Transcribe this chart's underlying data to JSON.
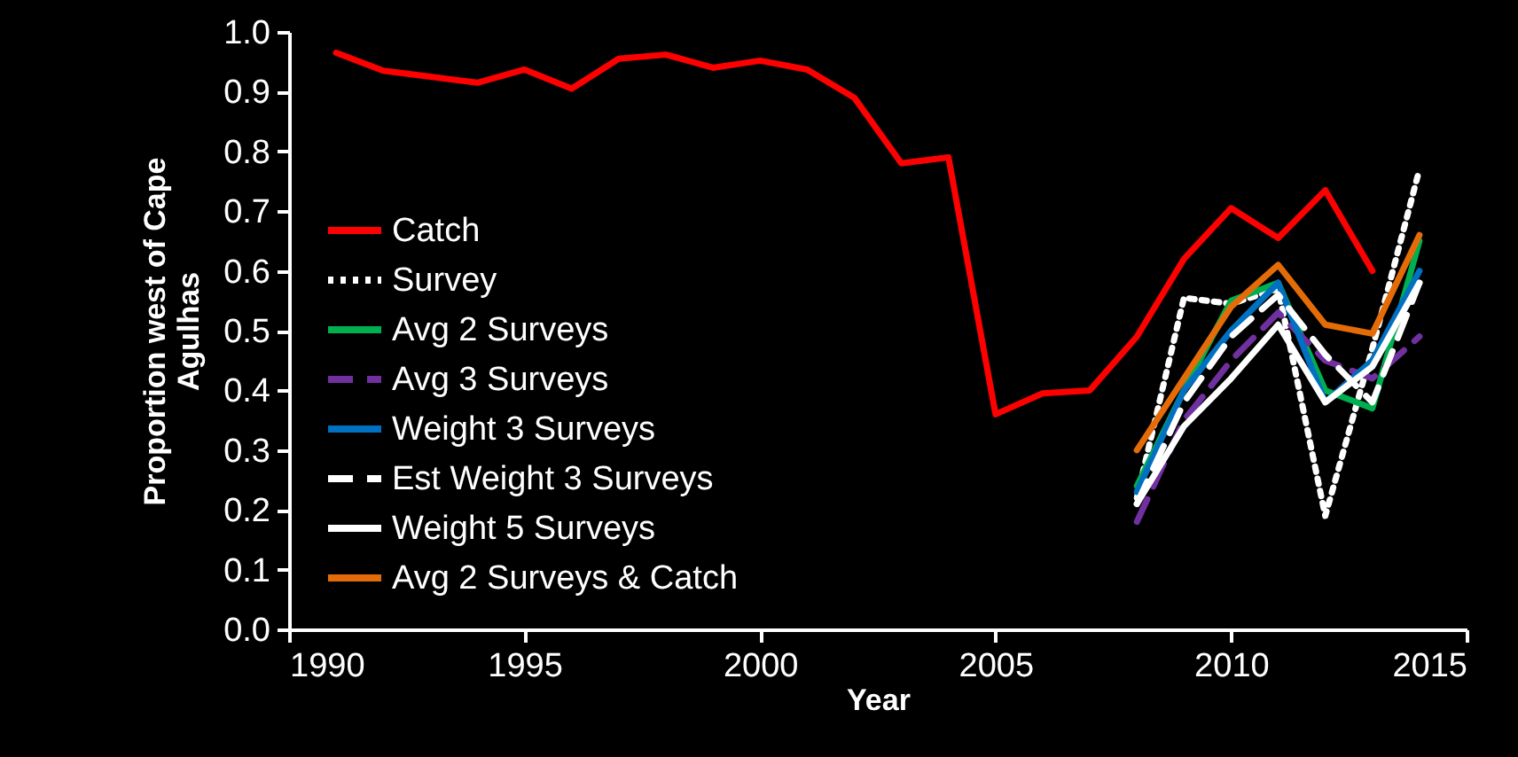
{
  "chart_data": {
    "type": "line",
    "xlabel": "Year",
    "ylabel": "Proportion west of Cape Agulhas",
    "xlim": [
      1990,
      2015
    ],
    "xticks": [
      1990,
      1995,
      2000,
      2005,
      2010,
      2015
    ],
    "ylim": [
      0,
      1
    ],
    "yticks": [
      {
        "value": 0,
        "label": "0.0"
      },
      {
        "value": 0.1,
        "label": "0.1"
      },
      {
        "value": 0.2,
        "label": "0.2"
      },
      {
        "value": 0.3,
        "label": "0.3"
      },
      {
        "value": 0.4,
        "label": "0.4"
      },
      {
        "value": 0.5,
        "label": "0.5"
      },
      {
        "value": 0.6,
        "label": "0.6"
      },
      {
        "value": 0.7,
        "label": "0.7"
      },
      {
        "value": 0.8,
        "label": "0.8"
      },
      {
        "value": 0.9,
        "label": "0.9"
      },
      {
        "value": 1,
        "label": "1.0"
      }
    ],
    "grid": false,
    "legend": "left",
    "marker": "none",
    "series": [
      {
        "name": "Catch",
        "color": "#ff0000",
        "line_style": "solid",
        "x": [
          1991,
          1992,
          1993,
          1994,
          1995,
          1996,
          1997,
          1998,
          1999,
          2000,
          2001,
          2002,
          2003,
          2004,
          2005,
          2006,
          2007,
          2008,
          2009,
          2010,
          2011,
          2012,
          2013
        ],
        "values": [
          0.965,
          0.935,
          0.925,
          0.915,
          0.937,
          0.905,
          0.955,
          0.962,
          0.94,
          0.952,
          0.937,
          0.89,
          0.78,
          0.79,
          0.36,
          0.395,
          0.4,
          0.49,
          0.62,
          0.705,
          0.655,
          0.735,
          0.6
        ]
      },
      {
        "name": "Survey",
        "color": "#ffffff",
        "line_style": "dotted",
        "x": [
          2008,
          2009,
          2010,
          2011,
          2012,
          2013,
          2014
        ],
        "values": [
          0.22,
          0.555,
          0.545,
          0.57,
          0.19,
          0.47,
          0.77
        ]
      },
      {
        "name": "Avg 2 Surveys",
        "color": "#00b050",
        "line_style": "solid",
        "x": [
          2008,
          2009,
          2010,
          2011,
          2012,
          2013,
          2014
        ],
        "values": [
          0.24,
          0.4,
          0.55,
          0.58,
          0.4,
          0.37,
          0.65
        ]
      },
      {
        "name": "Avg 3 Surveys",
        "color": "#7030a0",
        "line_style": "dashed",
        "x": [
          2008,
          2009,
          2010,
          2011,
          2012,
          2013,
          2014
        ],
        "values": [
          0.18,
          0.35,
          0.45,
          0.53,
          0.45,
          0.42,
          0.49
        ]
      },
      {
        "name": "Weight 3 Surveys",
        "color": "#0070c0",
        "line_style": "solid",
        "x": [
          2008,
          2009,
          2010,
          2011,
          2012,
          2013,
          2014
        ],
        "values": [
          0.23,
          0.4,
          0.5,
          0.58,
          0.38,
          0.45,
          0.6
        ]
      },
      {
        "name": "Est Weight 3 Surveys",
        "color": "#ffffff",
        "line_style": "dashed",
        "x": [
          2008,
          2009,
          2010,
          2011,
          2012,
          2013,
          2014
        ],
        "values": [
          0.21,
          0.38,
          0.49,
          0.56,
          0.46,
          0.38,
          0.58
        ]
      },
      {
        "name": "Weight 5 Surveys",
        "color": "#ffffff",
        "line_style": "solid",
        "x": [
          2008,
          2009,
          2010,
          2011,
          2012,
          2013,
          2014
        ],
        "values": [
          0.21,
          0.34,
          0.42,
          0.51,
          0.38,
          0.44,
          0.58
        ]
      },
      {
        "name": "Avg 2 Surveys & Catch",
        "color": "#e36c09",
        "line_style": "solid",
        "x": [
          2008,
          2009,
          2010,
          2011,
          2012,
          2013,
          2014
        ],
        "values": [
          0.3,
          0.42,
          0.54,
          0.61,
          0.51,
          0.495,
          0.66
        ]
      }
    ]
  }
}
